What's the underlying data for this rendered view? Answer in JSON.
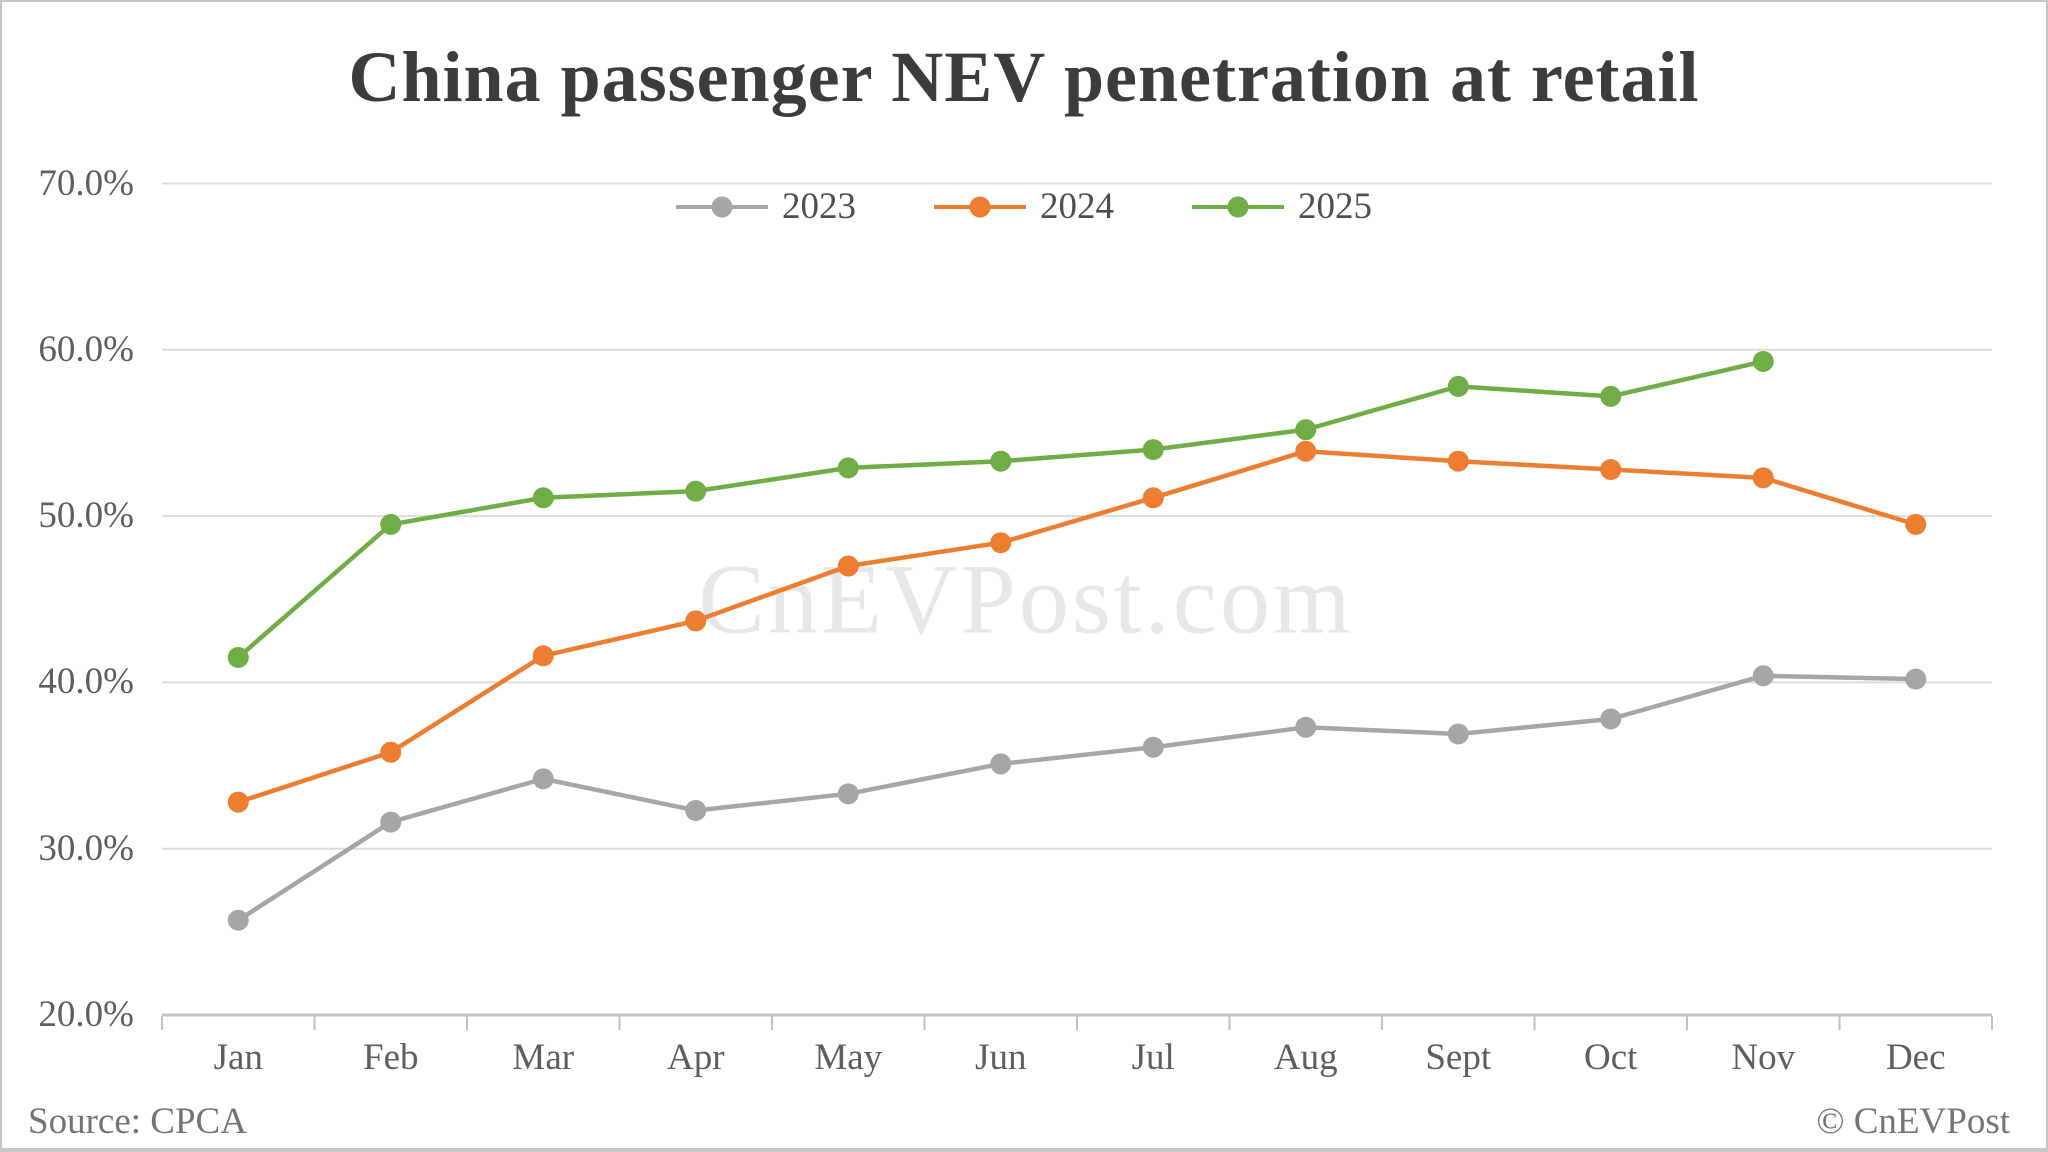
{
  "title": "China passenger NEV penetration at retail",
  "watermark": "CnEVPost.com",
  "footer": {
    "source": "Source: CPCA",
    "copyright": "© CnEVPost"
  },
  "colors": {
    "background": "#FFFFFF",
    "border": "#C6C6C6",
    "title": "#3C3C3C",
    "axis_label": "#5E5E5E",
    "legend_label": "#4F4F4F",
    "footer": "#747474",
    "watermark": "#E7E7E7",
    "gridline": "#DCDCDC",
    "axis_line": "#C2C2C2",
    "tick": "#C2C2C2"
  },
  "chart_data": {
    "type": "line",
    "title": "China passenger NEV penetration at retail",
    "xlabel": "",
    "ylabel": "",
    "categories": [
      "Jan",
      "Feb",
      "Mar",
      "Apr",
      "May",
      "Jun",
      "Jul",
      "Aug",
      "Sept",
      "Oct",
      "Nov",
      "Dec"
    ],
    "ylim": [
      20,
      70
    ],
    "yticks": [
      {
        "value": 20,
        "label": "20.0%"
      },
      {
        "value": 30,
        "label": "30.0%"
      },
      {
        "value": 40,
        "label": "40.0%"
      },
      {
        "value": 50,
        "label": "50.0%"
      },
      {
        "value": 60,
        "label": "60.0%"
      },
      {
        "value": 70,
        "label": "70.0%"
      }
    ],
    "grid": "horizontal",
    "legend_position": "top-center",
    "series": [
      {
        "name": "2023",
        "color": "#A6A6A6",
        "values": [
          25.7,
          31.6,
          34.2,
          32.3,
          33.3,
          35.1,
          36.1,
          37.3,
          36.9,
          37.8,
          40.4,
          40.2
        ]
      },
      {
        "name": "2024",
        "color": "#ED7D31",
        "values": [
          32.8,
          35.8,
          41.6,
          43.7,
          47.0,
          48.4,
          51.1,
          53.9,
          53.3,
          52.8,
          52.3,
          49.5
        ]
      },
      {
        "name": "2025",
        "color": "#70AD47",
        "values": [
          41.5,
          49.5,
          51.1,
          51.5,
          52.9,
          53.3,
          54.0,
          55.2,
          57.8,
          57.2,
          59.3,
          null
        ]
      }
    ]
  }
}
